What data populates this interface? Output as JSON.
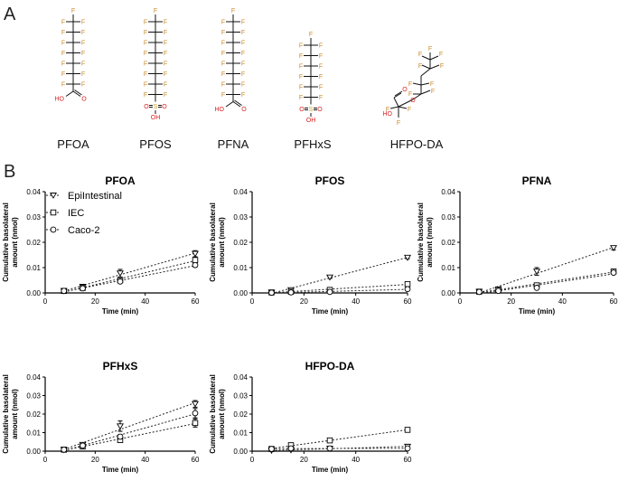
{
  "figure": {
    "panel_a": "A",
    "panel_b": "B",
    "molecules": [
      {
        "name": "PFOA",
        "cf": 7,
        "head": "COOH"
      },
      {
        "name": "PFOS",
        "cf": 8,
        "head": "SO3H"
      },
      {
        "name": "PFNA",
        "cf": 8,
        "head": "COOH"
      },
      {
        "name": "PFHxS",
        "cf": 6,
        "head": "SO3H"
      },
      {
        "name": "HFPO-DA",
        "cf": 0,
        "head": "HFPO"
      }
    ],
    "atoms": {
      "F": "F",
      "O": "O",
      "S": "S",
      "HO": "HO",
      "OH": "OH"
    },
    "colors": {
      "fluorine": "#c9892a",
      "oxygen": "#d81e1e",
      "sulfur": "#c9a227",
      "ink": "#000000"
    }
  },
  "chart_data": [
    {
      "type": "scatter",
      "title": "PFOA",
      "xlabel": "Time (min)",
      "ylabel": [
        "Cumulative basolateral",
        "amount (nmol)"
      ],
      "xlim": [
        0,
        60
      ],
      "ylim": [
        0,
        0.04
      ],
      "xticks": [
        "0",
        "20",
        "40",
        "60"
      ],
      "yticks": [
        "0.00",
        "0.01",
        "0.02",
        "0.03",
        "0.04"
      ],
      "legend": [
        "EpiIntestinal",
        "IEC",
        "Caco-2"
      ],
      "series": [
        {
          "name": "EpiIntestinal",
          "marker": "triangle-down",
          "x": [
            7.5,
            15,
            30,
            60
          ],
          "y": [
            0.0008,
            0.0025,
            0.0078,
            0.0155
          ],
          "err": [
            0,
            0.0003,
            0.0015,
            0.0012
          ]
        },
        {
          "name": "IEC",
          "marker": "square",
          "x": [
            7.5,
            15,
            30,
            60
          ],
          "y": [
            0.0008,
            0.002,
            0.005,
            0.013
          ],
          "err": [
            0,
            0.0003,
            0.0004,
            0.001
          ]
        },
        {
          "name": "Caco-2",
          "marker": "circle",
          "x": [
            7.5,
            15,
            30,
            60
          ],
          "y": [
            0.0008,
            0.0018,
            0.0045,
            0.011
          ],
          "err": [
            0,
            0.0002,
            0.0004,
            0.0008
          ]
        }
      ]
    },
    {
      "type": "scatter",
      "title": "PFOS",
      "xlabel": "Time (min)",
      "ylabel": [
        "Cumulative basolateral",
        "amount (nmol)"
      ],
      "xlim": [
        0,
        60
      ],
      "ylim": [
        0,
        0.04
      ],
      "xticks": [
        "0",
        "20",
        "40",
        "60"
      ],
      "yticks": [
        "0.00",
        "0.01",
        "0.02",
        "0.03",
        "0.04"
      ],
      "series": [
        {
          "name": "EpiIntestinal",
          "marker": "triangle-down",
          "x": [
            7.5,
            15,
            30,
            60
          ],
          "y": [
            0.0002,
            0.0012,
            0.0062,
            0.014
          ],
          "err": [
            0,
            0.0002,
            0.0005,
            0.0005
          ]
        },
        {
          "name": "IEC",
          "marker": "square",
          "x": [
            7.5,
            15,
            30,
            60
          ],
          "y": [
            0.0002,
            0.0005,
            0.0012,
            0.0035
          ],
          "err": [
            0,
            0.0001,
            0.0002,
            0.0003
          ]
        },
        {
          "name": "Caco-2",
          "marker": "circle",
          "x": [
            7.5,
            15,
            30,
            60
          ],
          "y": [
            0.0001,
            0.0002,
            0.0004,
            0.0015
          ],
          "err": [
            0,
            0.0001,
            0.0001,
            0.0002
          ]
        }
      ]
    },
    {
      "type": "scatter",
      "title": "PFNA",
      "xlabel": "Time (min)",
      "ylabel": [
        "Cumulative basolateral",
        "amount (nmol)"
      ],
      "xlim": [
        0,
        60
      ],
      "ylim": [
        0,
        0.04
      ],
      "xticks": [
        "0",
        "20",
        "40",
        "60"
      ],
      "yticks": [
        "0.00",
        "0.01",
        "0.02",
        "0.03",
        "0.04"
      ],
      "series": [
        {
          "name": "EpiIntestinal",
          "marker": "triangle-down",
          "x": [
            7.5,
            15,
            30,
            60
          ],
          "y": [
            0.0005,
            0.0015,
            0.0085,
            0.0178
          ],
          "err": [
            0,
            0.0003,
            0.0015,
            0.0008
          ]
        },
        {
          "name": "IEC",
          "marker": "square",
          "x": [
            7.5,
            15,
            30,
            60
          ],
          "y": [
            0.0005,
            0.0012,
            0.003,
            0.0085
          ],
          "err": [
            0,
            0.0002,
            0.0004,
            0.0005
          ]
        },
        {
          "name": "Caco-2",
          "marker": "circle",
          "x": [
            7.5,
            15,
            30,
            60
          ],
          "y": [
            0.0004,
            0.0008,
            0.002,
            0.008
          ],
          "err": [
            0,
            0.0002,
            0.0003,
            0.0005
          ]
        }
      ]
    },
    {
      "type": "scatter",
      "title": "PFHxS",
      "xlabel": "Time (min)",
      "ylabel": [
        "Cumulative basolateral",
        "amount (nmol)"
      ],
      "xlim": [
        0,
        60
      ],
      "ylim": [
        0,
        0.04
      ],
      "xticks": [
        "0",
        "20",
        "40",
        "60"
      ],
      "yticks": [
        "0.00",
        "0.01",
        "0.02",
        "0.03",
        "0.04"
      ],
      "series": [
        {
          "name": "EpiIntestinal",
          "marker": "triangle-down",
          "x": [
            7.5,
            15,
            30,
            60
          ],
          "y": [
            0.0008,
            0.0035,
            0.0135,
            0.0255
          ],
          "err": [
            0,
            0.0005,
            0.0028,
            0.0018
          ]
        },
        {
          "name": "IEC",
          "marker": "square",
          "x": [
            7.5,
            15,
            30,
            60
          ],
          "y": [
            0.0008,
            0.0025,
            0.006,
            0.0152
          ],
          "err": [
            0,
            0.0004,
            0.0008,
            0.0022
          ]
        },
        {
          "name": "Caco-2",
          "marker": "circle",
          "x": [
            7.5,
            15,
            30,
            60
          ],
          "y": [
            0.0008,
            0.003,
            0.0078,
            0.0205
          ],
          "err": [
            0,
            0.0005,
            0.0012,
            0.0025
          ]
        }
      ]
    },
    {
      "type": "scatter",
      "title": "HFPO-DA",
      "xlabel": "Time (min)",
      "ylabel": [
        "Cumulative basolateral",
        "amount (nmol)"
      ],
      "xlim": [
        0,
        60
      ],
      "ylim": [
        0,
        0.04
      ],
      "xticks": [
        "0",
        "20",
        "40",
        "60"
      ],
      "yticks": [
        "0.00",
        "0.01",
        "0.02",
        "0.03",
        "0.04"
      ],
      "series": [
        {
          "name": "EpiIntestinal",
          "marker": "triangle-down",
          "x": [
            7.5,
            15,
            30,
            60
          ],
          "y": [
            0.0004,
            0.0006,
            0.0015,
            0.0025
          ],
          "err": [
            0,
            0.0001,
            0.0002,
            0.0002
          ]
        },
        {
          "name": "IEC",
          "marker": "square",
          "x": [
            7.5,
            15,
            30,
            60
          ],
          "y": [
            0.0012,
            0.0032,
            0.0058,
            0.0115
          ],
          "err": [
            0,
            0.0002,
            0.0004,
            0.0004
          ]
        },
        {
          "name": "Caco-2",
          "marker": "circle",
          "x": [
            7.5,
            15,
            30,
            60
          ],
          "y": [
            0.0012,
            0.0015,
            0.0015,
            0.0015
          ],
          "err": [
            0,
            0.0001,
            0.0001,
            0.0001
          ]
        }
      ]
    }
  ]
}
